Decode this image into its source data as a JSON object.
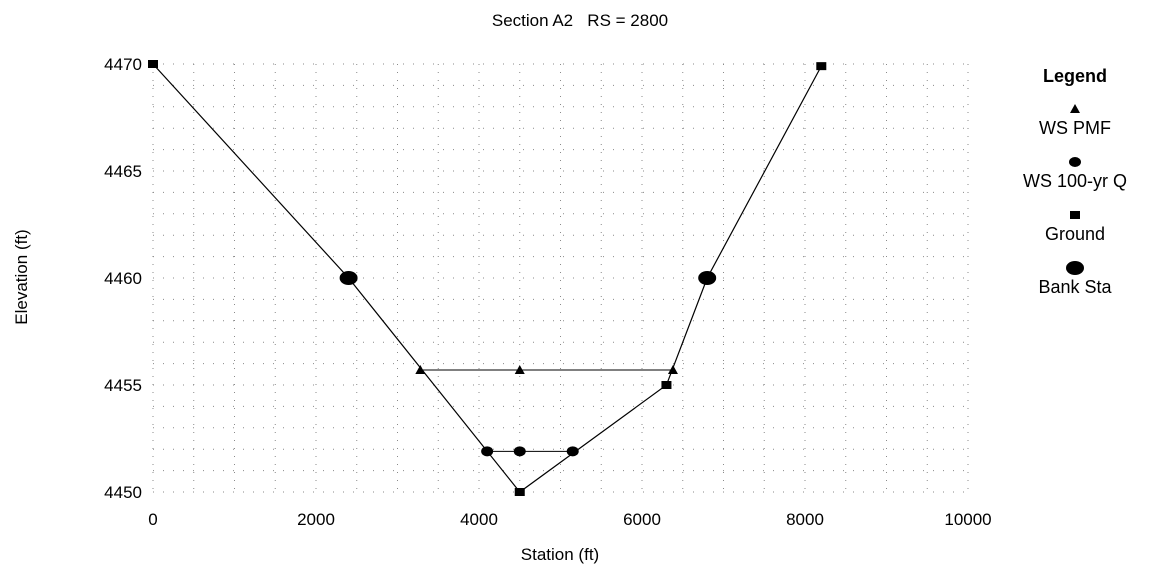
{
  "chart_data": {
    "type": "line",
    "title": "Section A2   RS = 2800",
    "xlabel": "Station (ft)",
    "ylabel": "Elevation (ft)",
    "xlim": [
      0,
      10000
    ],
    "ylim": [
      4450,
      4470
    ],
    "x_ticks": [
      0,
      2000,
      4000,
      6000,
      8000,
      10000
    ],
    "y_ticks": [
      4450,
      4455,
      4460,
      4465,
      4470
    ],
    "grid": true,
    "legend_title": "Legend",
    "legend_position": "top-right",
    "series": [
      {
        "name": "WS PMF",
        "marker": "triangle",
        "values": [
          [
            3280,
            4455.7
          ],
          [
            4500,
            4455.7
          ],
          [
            6380,
            4455.7
          ]
        ]
      },
      {
        "name": "WS 100-yr Q",
        "marker": "small-circle",
        "values": [
          [
            4100,
            4451.9
          ],
          [
            4500,
            4451.9
          ],
          [
            5150,
            4451.9
          ]
        ]
      },
      {
        "name": "Ground",
        "marker": "square",
        "values": [
          [
            0,
            4470
          ],
          [
            2400,
            4460
          ],
          [
            4500,
            4450
          ],
          [
            6300,
            4455
          ],
          [
            6800,
            4460
          ],
          [
            8200,
            4469.9
          ]
        ]
      },
      {
        "name": "Bank Sta",
        "marker": "large-circle",
        "values": [
          [
            2400,
            4460
          ],
          [
            6800,
            4460
          ]
        ]
      }
    ]
  },
  "colors": {
    "line": "#000000",
    "grid": "#8a8a8a"
  }
}
